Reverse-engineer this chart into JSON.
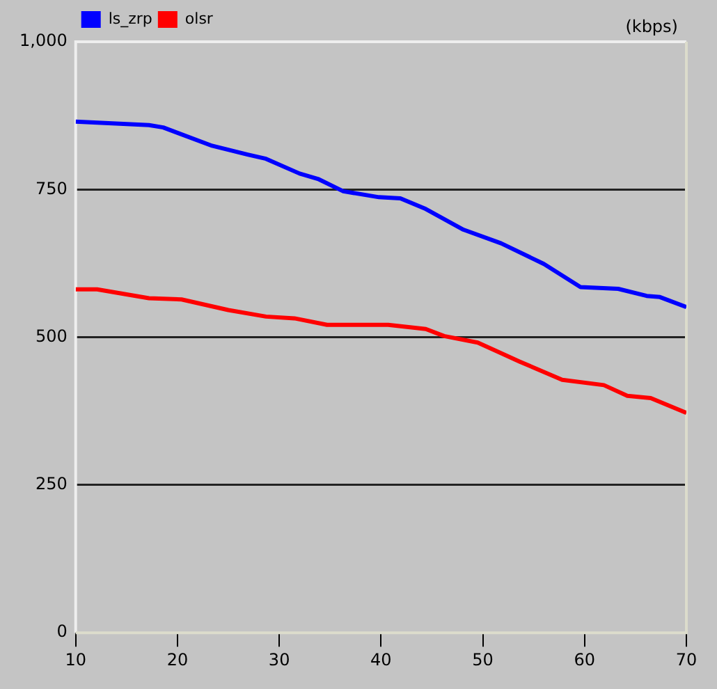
{
  "chart_data": {
    "type": "line",
    "ylabel": "(kbps)",
    "series": [
      {
        "name": "ls_zrp",
        "color": "#0000ff",
        "x": [
          10,
          17.2,
          18.6,
          23.4,
          26.9,
          28.7,
          32,
          33.8,
          36.3,
          39.8,
          41.9,
          44.4,
          48.1,
          51.8,
          56,
          59.6,
          63.3,
          66.1,
          67.4,
          70
        ],
        "values": [
          865,
          859,
          855,
          824,
          809,
          802,
          777,
          768,
          747,
          737,
          735,
          717,
          682,
          659,
          624,
          585,
          582,
          570,
          568,
          551
        ]
      },
      {
        "name": "olsr",
        "color": "#ff0000",
        "x": [
          10,
          12.1,
          17.2,
          20.4,
          25,
          28.7,
          31.5,
          34.7,
          40.7,
          44.4,
          46.2,
          49.5,
          53.6,
          57.8,
          61.9,
          64.2,
          66.5,
          70
        ],
        "values": [
          581,
          581,
          566,
          564,
          546,
          535,
          532,
          521,
          521,
          514,
          502,
          491,
          459,
          428,
          419,
          401,
          397,
          372
        ]
      }
    ],
    "xlim": [
      10,
      70
    ],
    "xticks": [
      10,
      20,
      30,
      40,
      50,
      60,
      70
    ],
    "ylim": [
      0,
      1000
    ],
    "yticks": [
      0,
      250,
      500,
      750,
      {
        "value": 1000,
        "label": "1,000"
      }
    ],
    "grid": "y",
    "legend": "top left",
    "marker": "none",
    "line_style": "solid"
  }
}
